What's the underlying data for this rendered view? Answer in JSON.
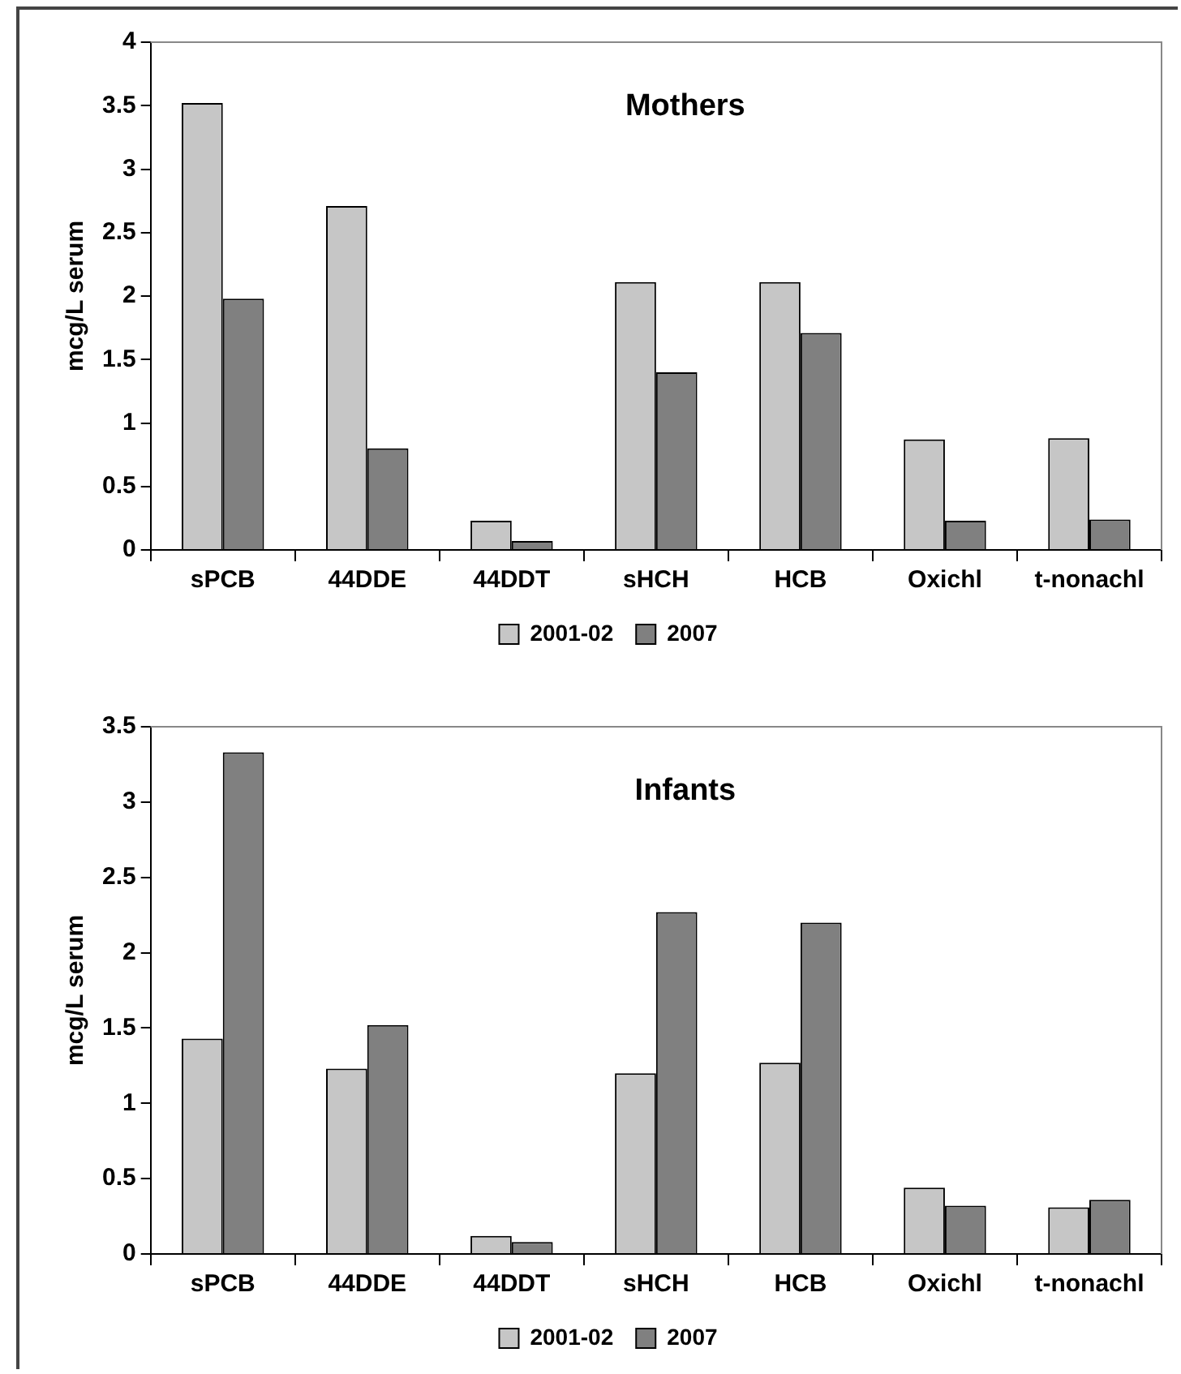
{
  "chart_data": [
    {
      "type": "bar",
      "title": "Mothers",
      "ylabel": "mcg/L serum",
      "categories": [
        "sPCB",
        "44DDE",
        "44DDT",
        "sHCH",
        "HCB",
        "Oxichl",
        "t-nonachl"
      ],
      "series": [
        {
          "name": "2001-02",
          "color": "#c6c6c6",
          "values": [
            3.52,
            2.71,
            0.23,
            2.11,
            2.11,
            0.87,
            0.88
          ]
        },
        {
          "name": "2007",
          "color": "#808080",
          "values": [
            1.98,
            0.8,
            0.07,
            1.4,
            1.71,
            0.23,
            0.24
          ]
        }
      ],
      "ylim": [
        0,
        4
      ],
      "yticks": [
        0,
        0.5,
        1,
        1.5,
        2,
        2.5,
        3,
        3.5,
        4
      ],
      "grid": false,
      "legend": "bottom"
    },
    {
      "type": "bar",
      "title": "Infants",
      "ylabel": "mcg/L serum",
      "categories": [
        "sPCB",
        "44DDE",
        "44DDT",
        "sHCH",
        "HCB",
        "Oxichl",
        "t-nonachl"
      ],
      "series": [
        {
          "name": "2001-02",
          "color": "#c6c6c6",
          "values": [
            1.43,
            1.23,
            0.12,
            1.2,
            1.27,
            0.44,
            0.31
          ]
        },
        {
          "name": "2007",
          "color": "#808080",
          "values": [
            3.33,
            1.52,
            0.08,
            2.27,
            2.2,
            0.32,
            0.36
          ]
        }
      ],
      "ylim": [
        0,
        3.5
      ],
      "yticks": [
        0,
        0.5,
        1,
        1.5,
        2,
        2.5,
        3,
        3.5
      ],
      "grid": false,
      "legend": "bottom"
    }
  ]
}
